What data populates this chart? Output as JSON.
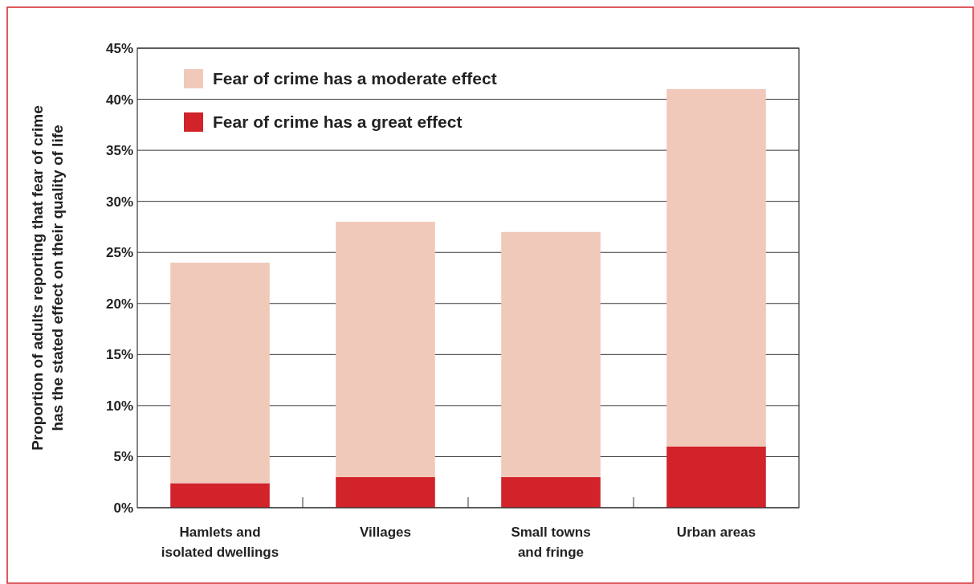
{
  "chart_data": {
    "type": "bar",
    "stacked": true,
    "categories": [
      "Hamlets and\nisolated dwellings",
      "Villages",
      "Small towns\nand fringe",
      "Urban areas"
    ],
    "series": [
      {
        "name": "Fear of crime has a great effect",
        "color": "#d2232a",
        "values": [
          2.4,
          3,
          3,
          6
        ]
      },
      {
        "name": "Fear of crime has a moderate effect",
        "color": "#f0c9bb",
        "values": [
          21.6,
          25,
          24,
          35
        ]
      }
    ],
    "ylabel": "Proportion of adults reporting that fear of crime\nhas the stated effect on their quality of life",
    "ylim": [
      0,
      45
    ],
    "yticks": [
      {
        "value": 0,
        "label": "0%"
      },
      {
        "value": 5,
        "label": "5%"
      },
      {
        "value": 10,
        "label": "10%"
      },
      {
        "value": 15,
        "label": "15%"
      },
      {
        "value": 20,
        "label": "20%"
      },
      {
        "value": 25,
        "label": "25%"
      },
      {
        "value": 30,
        "label": "30%"
      },
      {
        "value": 35,
        "label": "35%"
      },
      {
        "value": 40,
        "label": "40%"
      },
      {
        "value": 45,
        "label": "45%"
      }
    ],
    "grid": "y",
    "legend": "top left"
  }
}
